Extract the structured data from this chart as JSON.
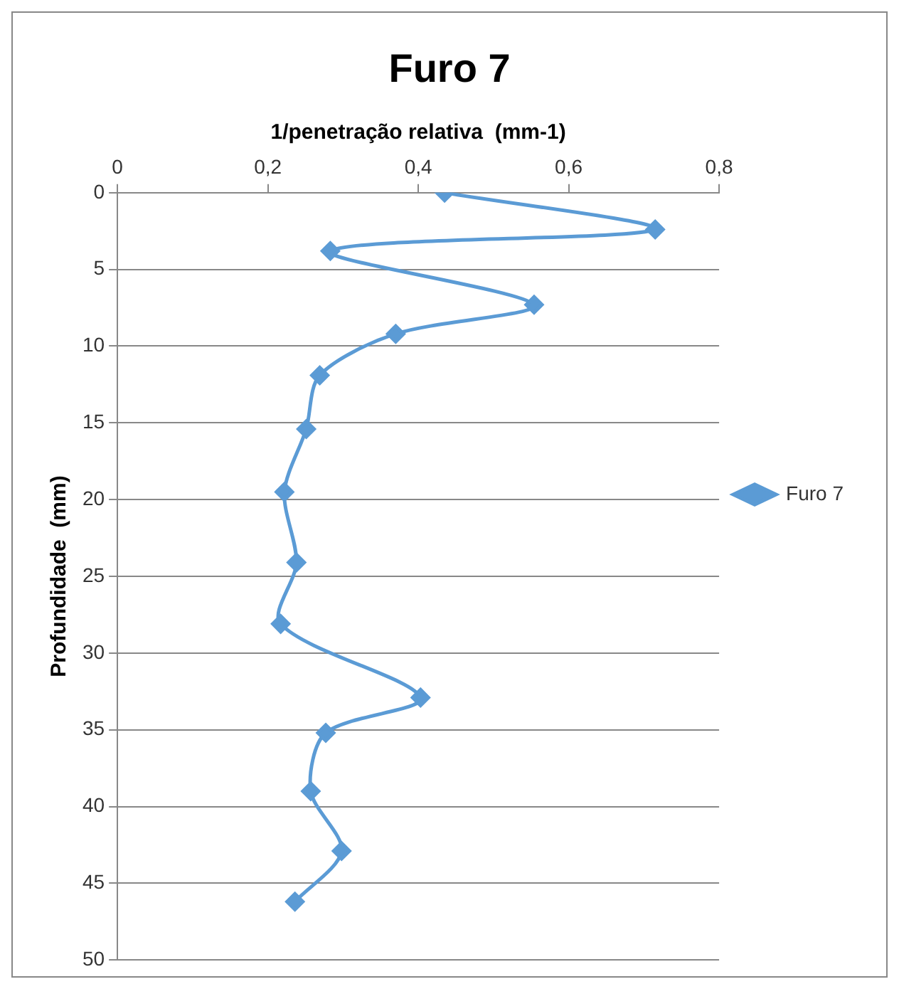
{
  "chart_data": {
    "type": "line",
    "title": "Furo 7",
    "xlabel": "1/penetração relativa  (mm-1)",
    "ylabel": "Profundidade  (mm)",
    "x": [
      0.435,
      0.715,
      0.283,
      0.554,
      0.37,
      0.269,
      0.251,
      0.222,
      0.238,
      0.217,
      0.403,
      0.277,
      0.257,
      0.298,
      0.236
    ],
    "series": [
      {
        "name": "Furo 7",
        "color": "#5b9bd5",
        "values": [
          0,
          2.4,
          3.8,
          7.3,
          9.2,
          11.9,
          15.4,
          19.5,
          24.1,
          28.1,
          32.9,
          35.2,
          39.0,
          42.9,
          46.2
        ]
      }
    ],
    "xlim": [
      0,
      0.8
    ],
    "xticks": [
      0,
      {
        "value": 0.2,
        "label": "0,2"
      },
      {
        "value": 0.4,
        "label": "0,4"
      },
      {
        "value": 0.6,
        "label": "0,6"
      },
      {
        "value": 0.8,
        "label": "0,8"
      }
    ],
    "ylim": [
      50,
      0
    ],
    "yticks": [
      0,
      5,
      10,
      15,
      20,
      25,
      30,
      35,
      40,
      45,
      50
    ],
    "grid": "y",
    "legend": "right",
    "marker": "diamond",
    "line_style": "solid"
  }
}
